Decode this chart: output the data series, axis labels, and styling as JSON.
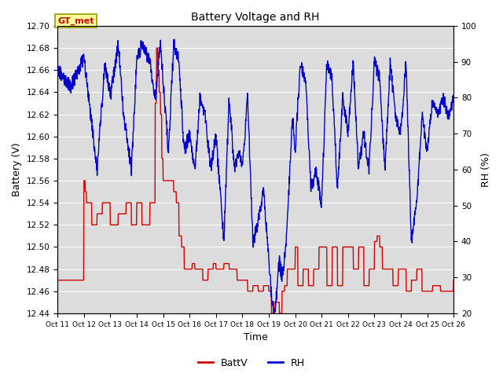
{
  "title": "Battery Voltage and RH",
  "xlabel": "Time",
  "ylabel_left": "Battery (V)",
  "ylabel_right": "RH (%)",
  "ylim_left": [
    12.44,
    12.7
  ],
  "ylim_right": [
    20,
    100
  ],
  "bg_color": "#dcdcdc",
  "fig_color": "#ffffff",
  "grid_color": "#ffffff",
  "battv_color": "#cc0000",
  "rh_color": "#0000cc",
  "annotation_text": "GT_met",
  "annotation_bg": "#ffff99",
  "annotation_border": "#999900",
  "annotation_text_color": "#cc0000",
  "x_tick_labels": [
    "Oct 11",
    "Oct 12",
    "Oct 13",
    "Oct 14",
    "Oct 15",
    "Oct 16",
    "Oct 17",
    "Oct 18",
    "Oct 19",
    "Oct 20",
    "Oct 21",
    "Oct 22",
    "Oct 23",
    "Oct 24",
    "Oct 25",
    "Oct 26"
  ],
  "legend_labels": [
    "BattV",
    "RH"
  ],
  "yticks_left": [
    12.44,
    12.46,
    12.48,
    12.5,
    12.52,
    12.54,
    12.56,
    12.58,
    12.6,
    12.62,
    12.64,
    12.66,
    12.68,
    12.7
  ],
  "yticks_right": [
    20,
    30,
    40,
    50,
    60,
    70,
    80,
    90,
    100
  ]
}
